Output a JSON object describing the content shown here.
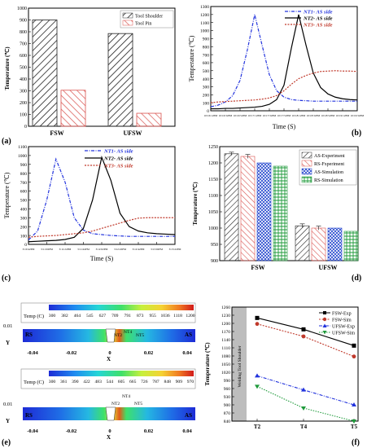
{
  "panel_labels": [
    "(a)",
    "(b)",
    "(c)",
    "(d)",
    "(e)",
    "(f)"
  ],
  "chart_data": [
    {
      "id": "a",
      "type": "bar",
      "categories": [
        "FSW",
        "UFSW"
      ],
      "series": [
        {
          "name": "Tool Shoulder",
          "values": [
            900,
            785
          ]
        },
        {
          "name": "Tool Pin",
          "values": [
            305,
            110
          ]
        }
      ],
      "xlabel": "",
      "ylabel": "Temperature (℃)",
      "ylim": [
        0,
        1000
      ],
      "yticks": [
        0,
        100,
        200,
        300,
        400,
        500,
        600,
        700,
        800,
        900,
        1000
      ],
      "legend": "top-right",
      "grid": false
    },
    {
      "id": "b",
      "type": "line",
      "xticks": [
        "10:16:12PM",
        "10:16:32PM",
        "10:16:52PM",
        "10:17:12PM",
        "10:17:32PM",
        "10:17:52PM",
        "10:18:12PM",
        "10:18:32PM",
        "10:18:52PM",
        "10:19:12PM",
        "10:19:32PM"
      ],
      "x": [
        0,
        0.5,
        1,
        1.5,
        2,
        2.5,
        3,
        3.5,
        4,
        4.5,
        5,
        5.5,
        6,
        6.5,
        7,
        7.5,
        8,
        8.5,
        9,
        9.5,
        10
      ],
      "series": [
        {
          "name": "NT1- AS side",
          "values": [
            50,
            70,
            110,
            190,
            380,
            760,
            1200,
            820,
            450,
            250,
            170,
            140,
            130,
            125,
            120,
            120,
            120,
            120,
            120,
            120,
            120
          ]
        },
        {
          "name": "NT2- AS side",
          "values": [
            25,
            25,
            30,
            30,
            35,
            40,
            45,
            55,
            80,
            140,
            320,
            780,
            1200,
            820,
            470,
            290,
            210,
            170,
            150,
            140,
            135
          ]
        },
        {
          "name": "NT3- AS side",
          "values": [
            100,
            110,
            115,
            120,
            125,
            130,
            135,
            145,
            160,
            190,
            250,
            330,
            400,
            440,
            470,
            490,
            495,
            500,
            495,
            495,
            490
          ]
        }
      ],
      "xlabel": "Time (S)",
      "ylabel": "Temperature (℃)",
      "ylim": [
        0,
        1300
      ],
      "yticks": [
        0,
        100,
        200,
        300,
        400,
        500,
        600,
        700,
        800,
        900,
        1000,
        1100,
        1200,
        1300
      ],
      "legend": "top-right",
      "grid": false
    },
    {
      "id": "c",
      "type": "line",
      "xticks": [
        "3:10:42PM",
        "3:11:02PM",
        "3:11:22PM",
        "3:11:42PM",
        "3:12:02PM",
        "3:12:22PM",
        "3:12:42PM",
        "3:13:02PM",
        "3:13:22PM"
      ],
      "x": [
        0,
        0.5,
        1,
        1.5,
        2,
        2.5,
        3,
        3.5,
        4,
        4.5,
        5,
        5.5,
        6,
        6.5,
        7,
        7.5,
        8
      ],
      "series": [
        {
          "name": "NT1- AS side",
          "values": [
            50,
            150,
            500,
            960,
            700,
            300,
            160,
            120,
            110,
            100,
            95,
            90,
            90,
            90,
            90,
            90,
            90
          ]
        },
        {
          "name": "NT2- AS side",
          "values": [
            30,
            35,
            40,
            45,
            55,
            80,
            180,
            500,
            980,
            720,
            350,
            200,
            150,
            130,
            120,
            115,
            110
          ]
        },
        {
          "name": "NT3- AS side",
          "values": [
            80,
            90,
            95,
            100,
            110,
            120,
            130,
            150,
            180,
            210,
            240,
            270,
            295,
            300,
            300,
            300,
            300
          ]
        }
      ],
      "xlabel": "Time (S)",
      "ylabel": "Temperature (℃)",
      "ylim": [
        0,
        1100
      ],
      "yticks": [
        0,
        100,
        200,
        300,
        400,
        500,
        600,
        700,
        800,
        900,
        1000,
        1100
      ],
      "legend": "top-right",
      "grid": false
    },
    {
      "id": "d",
      "type": "bar",
      "categories": [
        "FSW",
        "UFSW"
      ],
      "series": [
        {
          "name": "AS-Experiment",
          "values": [
            1228,
            1007
          ]
        },
        {
          "name": "RS-Fxperiment",
          "values": [
            1220,
            1000
          ]
        },
        {
          "name": "AS-Simulation",
          "values": [
            1200,
            1000
          ]
        },
        {
          "name": "RS-Simulation",
          "values": [
            1190,
            990
          ]
        }
      ],
      "error_bars": [
        [
          5,
          6
        ],
        [
          6,
          6
        ],
        [
          0,
          0
        ],
        [
          0,
          0
        ]
      ],
      "ylabel": "Temperature (℃)",
      "ylim": [
        900,
        1250
      ],
      "yticks": [
        900,
        950,
        1000,
        1050,
        1100,
        1150,
        1200,
        1250
      ],
      "legend": "top-right",
      "grid": false
    },
    {
      "id": "e",
      "type": "heatmap",
      "plots": [
        {
          "colorbar_title": "Temp (C)",
          "colorbar_ticks": [
            "300",
            "382",
            "464",
            "545",
            "627",
            "709",
            "791",
            "873",
            "955",
            "1036",
            "1118",
            "1200"
          ],
          "xticks": [
            "-0.04",
            "-0.02",
            "0",
            "0.02",
            "0.04"
          ],
          "xlabel": "X",
          "ylabel": "Y",
          "ytick": "0.01",
          "side_left": "RS",
          "side_right": "AS",
          "points": [
            "NT2",
            "NT4",
            "NT5"
          ]
        },
        {
          "colorbar_title": "Temp (C)",
          "colorbar_ticks": [
            "300",
            "361",
            "390",
            "422",
            "483",
            "544",
            "605",
            "665",
            "726",
            "787",
            "848",
            "909",
            "970"
          ],
          "xticks": [
            "-0.04",
            "-0.02",
            "0",
            "0.02",
            "0.04"
          ],
          "xlabel": "X",
          "ylabel": "Y",
          "ytick": "0.01",
          "side_left": "RS",
          "side_right": "AS",
          "points": [
            "NT2",
            "NT4",
            "NT5"
          ]
        }
      ]
    },
    {
      "id": "f",
      "type": "line",
      "categories": [
        "T2",
        "T4",
        "T5"
      ],
      "series": [
        {
          "name": "FSW-Exp",
          "values": [
            1220,
            1178,
            1118
          ]
        },
        {
          "name": "FSW-Sim",
          "values": [
            1198,
            1152,
            1078
          ]
        },
        {
          "name": "UFSW-Exp",
          "values": [
            1007,
            955,
            900
          ]
        },
        {
          "name": "UFSW-Sim",
          "values": [
            968,
            888,
            840
          ]
        }
      ],
      "ylabel": "Temperature (℃)",
      "ylim": [
        840,
        1260
      ],
      "yticks": [
        840,
        870,
        900,
        930,
        960,
        990,
        1020,
        1050,
        1080,
        1110,
        1140,
        1170,
        1200,
        1230,
        1260
      ],
      "shaded_label": "Welding Tool Shoulder",
      "legend": "top-right",
      "grid": false
    }
  ]
}
